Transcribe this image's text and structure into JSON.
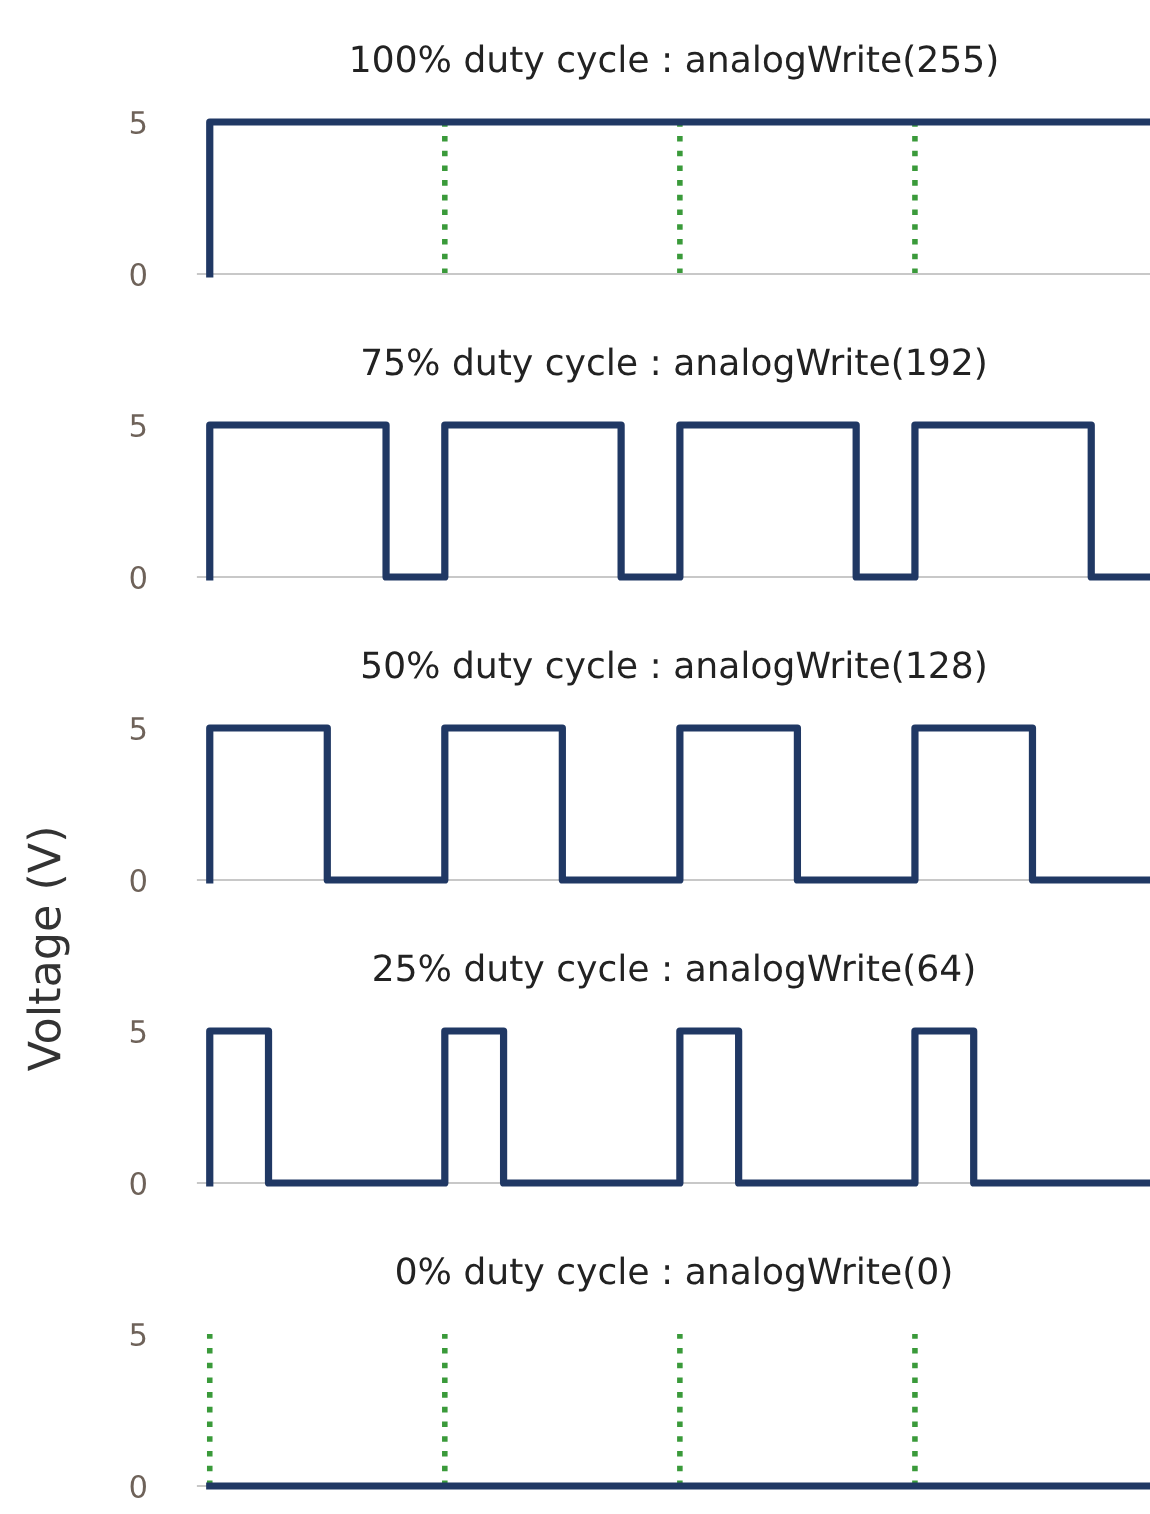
{
  "chart_data": [
    {
      "type": "step",
      "title": "100% duty cycle : analogWrite(255)",
      "categories": [
        null,
        null,
        null,
        null,
        null,
        null,
        null,
        null,
        null,
        null,
        null,
        null,
        null,
        null,
        null,
        null,
        null
      ],
      "series": [
        {
          "color": "#203864",
          "values": [
            0,
            5,
            5,
            5,
            5,
            5,
            5,
            5,
            5,
            5,
            5,
            5,
            5,
            5,
            5,
            5,
            5
          ]
        }
      ],
      "ylim": [
        0,
        5
      ],
      "yticks": [
        0,
        5
      ],
      "tick_labels": "y",
      "grid": "x"
    },
    {
      "type": "step",
      "title": "75% duty cycle : analogWrite(192)",
      "categories": [
        null,
        null,
        null,
        null,
        null,
        null,
        null,
        null,
        null,
        null,
        null,
        null,
        null,
        null,
        null,
        null,
        null
      ],
      "series": [
        {
          "color": "#203864",
          "values": [
            0,
            5,
            5,
            5,
            0,
            5,
            5,
            5,
            0,
            5,
            5,
            5,
            0,
            5,
            5,
            5,
            0
          ]
        }
      ],
      "ylim": [
        0,
        5
      ],
      "yticks": [
        0,
        5
      ],
      "tick_labels": "y",
      "grid": "x"
    },
    {
      "type": "step",
      "title": "50% duty cycle : analogWrite(128)",
      "ylabel": "Voltage (V)",
      "categories": [
        null,
        null,
        null,
        null,
        null,
        null,
        null,
        null,
        null,
        null,
        null,
        null,
        null,
        null,
        null,
        null,
        null
      ],
      "series": [
        {
          "color": "#203864",
          "values": [
            0,
            5,
            5,
            0,
            0,
            5,
            5,
            0,
            0,
            5,
            5,
            0,
            0,
            5,
            5,
            0,
            0
          ]
        }
      ],
      "ylim": [
        0,
        5
      ],
      "yticks": [
        0,
        5
      ],
      "tick_labels": "y",
      "grid": "x"
    },
    {
      "type": "step",
      "title": "25% duty cycle : analogWrite(64)",
      "categories": [
        null,
        null,
        null,
        null,
        null,
        null,
        null,
        null,
        null,
        null,
        null,
        null,
        null,
        null,
        null,
        null,
        null
      ],
      "series": [
        {
          "color": "#203864",
          "values": [
            0,
            5,
            0,
            0,
            0,
            5,
            0,
            0,
            0,
            5,
            0,
            0,
            0,
            5,
            0,
            0,
            0
          ]
        }
      ],
      "ylim": [
        0,
        5
      ],
      "yticks": [
        0,
        5
      ],
      "tick_labels": "y",
      "grid": "x"
    },
    {
      "type": "step",
      "title": "0% duty cycle : analogWrite(0)",
      "categories": [
        null,
        null,
        null,
        null,
        null,
        null,
        null,
        null,
        null,
        null,
        null,
        null,
        null,
        null,
        null,
        null,
        null
      ],
      "series": [
        {
          "color": "#203864",
          "values": [
            0,
            0,
            0,
            0,
            0,
            0,
            0,
            0,
            0,
            0,
            0,
            0,
            0,
            0,
            0,
            0,
            0
          ]
        }
      ],
      "ylim": [
        0,
        5
      ],
      "yticks": [
        0,
        5
      ],
      "tick_labels": "y",
      "grid": "x"
    }
  ]
}
